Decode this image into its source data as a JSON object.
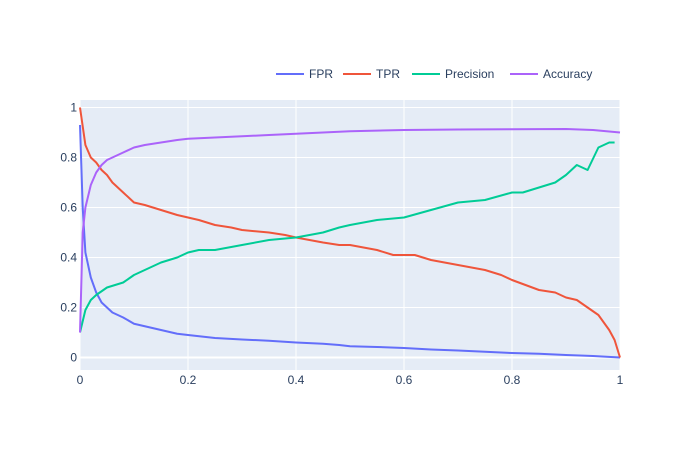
{
  "chart_data": {
    "type": "line",
    "title": "",
    "xlabel": "",
    "ylabel": "",
    "xlim": [
      0,
      1
    ],
    "ylim": [
      -0.05,
      1.03
    ],
    "x_ticks": [
      0,
      0.2,
      0.4,
      0.6,
      0.8,
      1
    ],
    "x_tick_labels": [
      "0",
      "0.2",
      "0.4",
      "0.6",
      "0.8",
      "1"
    ],
    "y_ticks": [
      0,
      0.2,
      0.4,
      0.6,
      0.8,
      1
    ],
    "y_tick_labels": [
      "0",
      "0.2",
      "0.4",
      "0.6",
      "0.8",
      "1"
    ],
    "grid": true,
    "legend_position": "top-right, horizontal",
    "colors": {
      "plot_background": "#E5ECF6",
      "grid": "#ffffff",
      "text": "#2a3f5f"
    },
    "series": [
      {
        "name": "FPR",
        "color": "#636EFA",
        "x": [
          0,
          0.005,
          0.01,
          0.02,
          0.03,
          0.04,
          0.05,
          0.06,
          0.08,
          0.1,
          0.12,
          0.15,
          0.18,
          0.2,
          0.25,
          0.3,
          0.35,
          0.4,
          0.45,
          0.48,
          0.5,
          0.55,
          0.6,
          0.65,
          0.7,
          0.75,
          0.8,
          0.85,
          0.9,
          0.95,
          1
        ],
        "y": [
          0.93,
          0.6,
          0.42,
          0.32,
          0.26,
          0.22,
          0.2,
          0.18,
          0.16,
          0.135,
          0.125,
          0.11,
          0.095,
          0.09,
          0.078,
          0.072,
          0.067,
          0.06,
          0.055,
          0.05,
          0.045,
          0.042,
          0.038,
          0.032,
          0.028,
          0.023,
          0.018,
          0.015,
          0.01,
          0.006,
          0
        ]
      },
      {
        "name": "TPR",
        "color": "#EF553B",
        "x": [
          0,
          0.01,
          0.02,
          0.03,
          0.04,
          0.05,
          0.06,
          0.08,
          0.1,
          0.12,
          0.15,
          0.18,
          0.2,
          0.22,
          0.25,
          0.28,
          0.3,
          0.35,
          0.38,
          0.4,
          0.45,
          0.48,
          0.5,
          0.55,
          0.58,
          0.6,
          0.62,
          0.65,
          0.7,
          0.75,
          0.78,
          0.8,
          0.85,
          0.88,
          0.9,
          0.92,
          0.94,
          0.96,
          0.98,
          0.99,
          1
        ],
        "y": [
          1,
          0.85,
          0.8,
          0.78,
          0.75,
          0.73,
          0.7,
          0.66,
          0.62,
          0.61,
          0.59,
          0.57,
          0.56,
          0.55,
          0.53,
          0.52,
          0.51,
          0.5,
          0.49,
          0.48,
          0.46,
          0.45,
          0.45,
          0.43,
          0.41,
          0.41,
          0.41,
          0.39,
          0.37,
          0.35,
          0.33,
          0.31,
          0.27,
          0.26,
          0.24,
          0.23,
          0.2,
          0.17,
          0.11,
          0.07,
          0.0
        ]
      },
      {
        "name": "Precision",
        "color": "#00CC96",
        "x": [
          0,
          0.01,
          0.02,
          0.03,
          0.05,
          0.08,
          0.1,
          0.12,
          0.15,
          0.18,
          0.2,
          0.22,
          0.25,
          0.3,
          0.35,
          0.4,
          0.45,
          0.48,
          0.5,
          0.55,
          0.6,
          0.65,
          0.7,
          0.75,
          0.8,
          0.82,
          0.85,
          0.88,
          0.9,
          0.92,
          0.94,
          0.96,
          0.97,
          0.98,
          0.99
        ],
        "y": [
          0.1,
          0.19,
          0.23,
          0.25,
          0.28,
          0.3,
          0.33,
          0.35,
          0.38,
          0.4,
          0.42,
          0.43,
          0.43,
          0.45,
          0.47,
          0.48,
          0.5,
          0.52,
          0.53,
          0.55,
          0.56,
          0.59,
          0.62,
          0.63,
          0.66,
          0.66,
          0.68,
          0.7,
          0.73,
          0.77,
          0.75,
          0.84,
          0.85,
          0.86,
          0.86
        ]
      },
      {
        "name": "Accuracy",
        "color": "#AB63FA",
        "x": [
          0,
          0.005,
          0.01,
          0.02,
          0.03,
          0.04,
          0.05,
          0.06,
          0.08,
          0.1,
          0.12,
          0.15,
          0.18,
          0.2,
          0.25,
          0.3,
          0.35,
          0.4,
          0.45,
          0.5,
          0.6,
          0.7,
          0.8,
          0.9,
          0.95,
          1
        ],
        "y": [
          0.1,
          0.5,
          0.6,
          0.69,
          0.74,
          0.77,
          0.79,
          0.8,
          0.82,
          0.84,
          0.85,
          0.86,
          0.87,
          0.875,
          0.88,
          0.885,
          0.89,
          0.895,
          0.9,
          0.905,
          0.91,
          0.912,
          0.913,
          0.914,
          0.91,
          0.9
        ]
      }
    ]
  }
}
